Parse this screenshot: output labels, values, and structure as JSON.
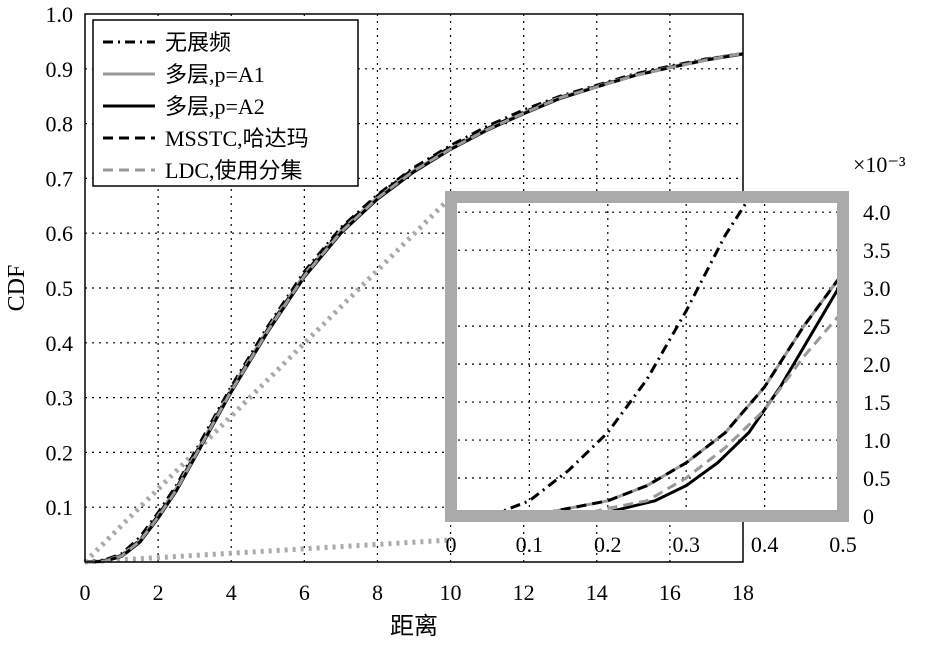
{
  "chart_data": [
    {
      "id": "main",
      "type": "line",
      "xlabel": "距离",
      "ylabel": "CDF",
      "xlim": [
        0,
        18
      ],
      "ylim": [
        0,
        1.0
      ],
      "x_ticks": [
        0,
        2,
        4,
        6,
        8,
        10,
        12,
        14,
        16,
        18
      ],
      "y_ticks": [
        0.1,
        0.2,
        0.3,
        0.4,
        0.5,
        0.6,
        0.7,
        0.8,
        0.9,
        1.0
      ],
      "x_tick_labels": [
        "0",
        "2",
        "4",
        "6",
        "8",
        "10",
        "12",
        "14",
        "16",
        "18"
      ],
      "y_tick_labels": [
        "0.1",
        "0.2",
        "0.3",
        "0.4",
        "0.5",
        "0.6",
        "0.7",
        "0.8",
        "0.9",
        "1.0"
      ],
      "grid": true,
      "legend_position": "top-left",
      "series": [
        {
          "name": "无展频",
          "style": "dashdot",
          "color": "#000000",
          "x": [
            0,
            0.5,
            1,
            1.5,
            2,
            2.5,
            3,
            3.5,
            4,
            5,
            6,
            7,
            8,
            9,
            10,
            11,
            12,
            13,
            14,
            15,
            16,
            17,
            18
          ],
          "y": [
            0,
            0.003,
            0.015,
            0.045,
            0.09,
            0.14,
            0.2,
            0.26,
            0.32,
            0.43,
            0.53,
            0.61,
            0.67,
            0.72,
            0.76,
            0.795,
            0.825,
            0.85,
            0.87,
            0.89,
            0.905,
            0.918,
            0.928
          ]
        },
        {
          "name": "多层,p=A1",
          "style": "solid",
          "color": "#999999",
          "x": [
            0,
            0.5,
            1,
            1.5,
            2,
            2.5,
            3,
            3.5,
            4,
            5,
            6,
            7,
            8,
            9,
            10,
            11,
            12,
            13,
            14,
            15,
            16,
            17,
            18
          ],
          "y": [
            0,
            0.002,
            0.012,
            0.04,
            0.085,
            0.135,
            0.195,
            0.255,
            0.315,
            0.425,
            0.525,
            0.605,
            0.665,
            0.715,
            0.755,
            0.79,
            0.82,
            0.848,
            0.868,
            0.888,
            0.903,
            0.917,
            0.928
          ]
        },
        {
          "name": "多层,p=A2",
          "style": "solid",
          "color": "#000000",
          "x": [
            0,
            0.5,
            1,
            1.5,
            2,
            2.5,
            3,
            3.5,
            4,
            5,
            6,
            7,
            8,
            9,
            10,
            11,
            12,
            13,
            14,
            15,
            16,
            17,
            18
          ],
          "y": [
            0,
            0.001,
            0.01,
            0.036,
            0.08,
            0.13,
            0.19,
            0.25,
            0.31,
            0.42,
            0.52,
            0.6,
            0.662,
            0.712,
            0.753,
            0.788,
            0.818,
            0.846,
            0.867,
            0.887,
            0.902,
            0.916,
            0.927
          ]
        },
        {
          "name": "MSSTC,哈达玛",
          "style": "dashed",
          "color": "#000000",
          "x": [
            0,
            0.5,
            1,
            1.5,
            2,
            2.5,
            3,
            3.5,
            4,
            5,
            6,
            7,
            8,
            9,
            10,
            11,
            12,
            13,
            14,
            15,
            16,
            17,
            18
          ],
          "y": [
            0,
            0.002,
            0.012,
            0.04,
            0.085,
            0.135,
            0.195,
            0.255,
            0.315,
            0.425,
            0.525,
            0.607,
            0.668,
            0.718,
            0.757,
            0.791,
            0.821,
            0.848,
            0.868,
            0.888,
            0.903,
            0.917,
            0.928
          ]
        },
        {
          "name": "LDC,使用分集",
          "style": "dashed",
          "color": "#999999",
          "x": [
            0,
            0.5,
            1,
            1.5,
            2,
            2.5,
            3,
            3.5,
            4,
            5,
            6,
            7,
            8,
            9,
            10,
            11,
            12,
            13,
            14,
            15,
            16,
            17,
            18
          ],
          "y": [
            0,
            0.001,
            0.011,
            0.038,
            0.082,
            0.132,
            0.192,
            0.252,
            0.312,
            0.422,
            0.522,
            0.602,
            0.664,
            0.714,
            0.754,
            0.789,
            0.819,
            0.847,
            0.867,
            0.887,
            0.902,
            0.916,
            0.928
          ]
        }
      ]
    },
    {
      "id": "inset",
      "type": "line",
      "xlim": [
        0,
        0.5
      ],
      "ylim": [
        0,
        0.0042
      ],
      "x_ticks": [
        0,
        0.1,
        0.2,
        0.3,
        0.4,
        0.5
      ],
      "y_ticks": [
        0,
        0.0005,
        0.001,
        0.0015,
        0.002,
        0.0025,
        0.003,
        0.0035,
        0.004
      ],
      "x_tick_labels": [
        "0",
        "0.1",
        "0.2",
        "0.3",
        "0.4",
        "0.5"
      ],
      "y_tick_labels": [
        "0",
        "0.5",
        "1.0",
        "1.5",
        "2.0",
        "2.5",
        "3.0",
        "3.5",
        "4.0"
      ],
      "y_scale_label": "×10⁻³",
      "grid": true,
      "frame_color": "#aaaaaa",
      "series": [
        {
          "name": "无展频",
          "style": "dashdot",
          "color": "#000000",
          "x": [
            0.05,
            0.1,
            0.15,
            0.2,
            0.25,
            0.3,
            0.35,
            0.4
          ],
          "y": [
            0.0,
            0.0002,
            0.0006,
            0.0011,
            0.0018,
            0.0027,
            0.0037,
            0.0045
          ]
        },
        {
          "name": "多层,p=A1",
          "style": "solid",
          "color": "#999999",
          "x": [
            0.1,
            0.15,
            0.2,
            0.25,
            0.3,
            0.35,
            0.4,
            0.45,
            0.5
          ],
          "y": [
            0.0,
            0.0001,
            0.0002,
            0.0004,
            0.0007,
            0.0011,
            0.0017,
            0.0025,
            0.0032
          ]
        },
        {
          "name": "多层,p=A2",
          "style": "solid",
          "color": "#000000",
          "x": [
            0.18,
            0.22,
            0.26,
            0.3,
            0.34,
            0.38,
            0.42,
            0.46,
            0.5
          ],
          "y": [
            0.0,
            0.0001,
            0.0002,
            0.0004,
            0.0007,
            0.0011,
            0.0017,
            0.0024,
            0.0031
          ]
        },
        {
          "name": "MSSTC,哈达玛",
          "style": "dashed",
          "color": "#000000",
          "x": [
            0.1,
            0.15,
            0.2,
            0.25,
            0.3,
            0.35,
            0.4,
            0.45,
            0.5
          ],
          "y": [
            0.0,
            0.0001,
            0.0002,
            0.0004,
            0.0007,
            0.0011,
            0.0017,
            0.0025,
            0.0032
          ]
        },
        {
          "name": "LDC,使用分集",
          "style": "dashed",
          "color": "#999999",
          "x": [
            0.16,
            0.2,
            0.25,
            0.3,
            0.35,
            0.4,
            0.45,
            0.5
          ],
          "y": [
            0.0,
            0.0001,
            0.0002,
            0.0005,
            0.0009,
            0.0014,
            0.0021,
            0.0027
          ]
        }
      ]
    }
  ]
}
